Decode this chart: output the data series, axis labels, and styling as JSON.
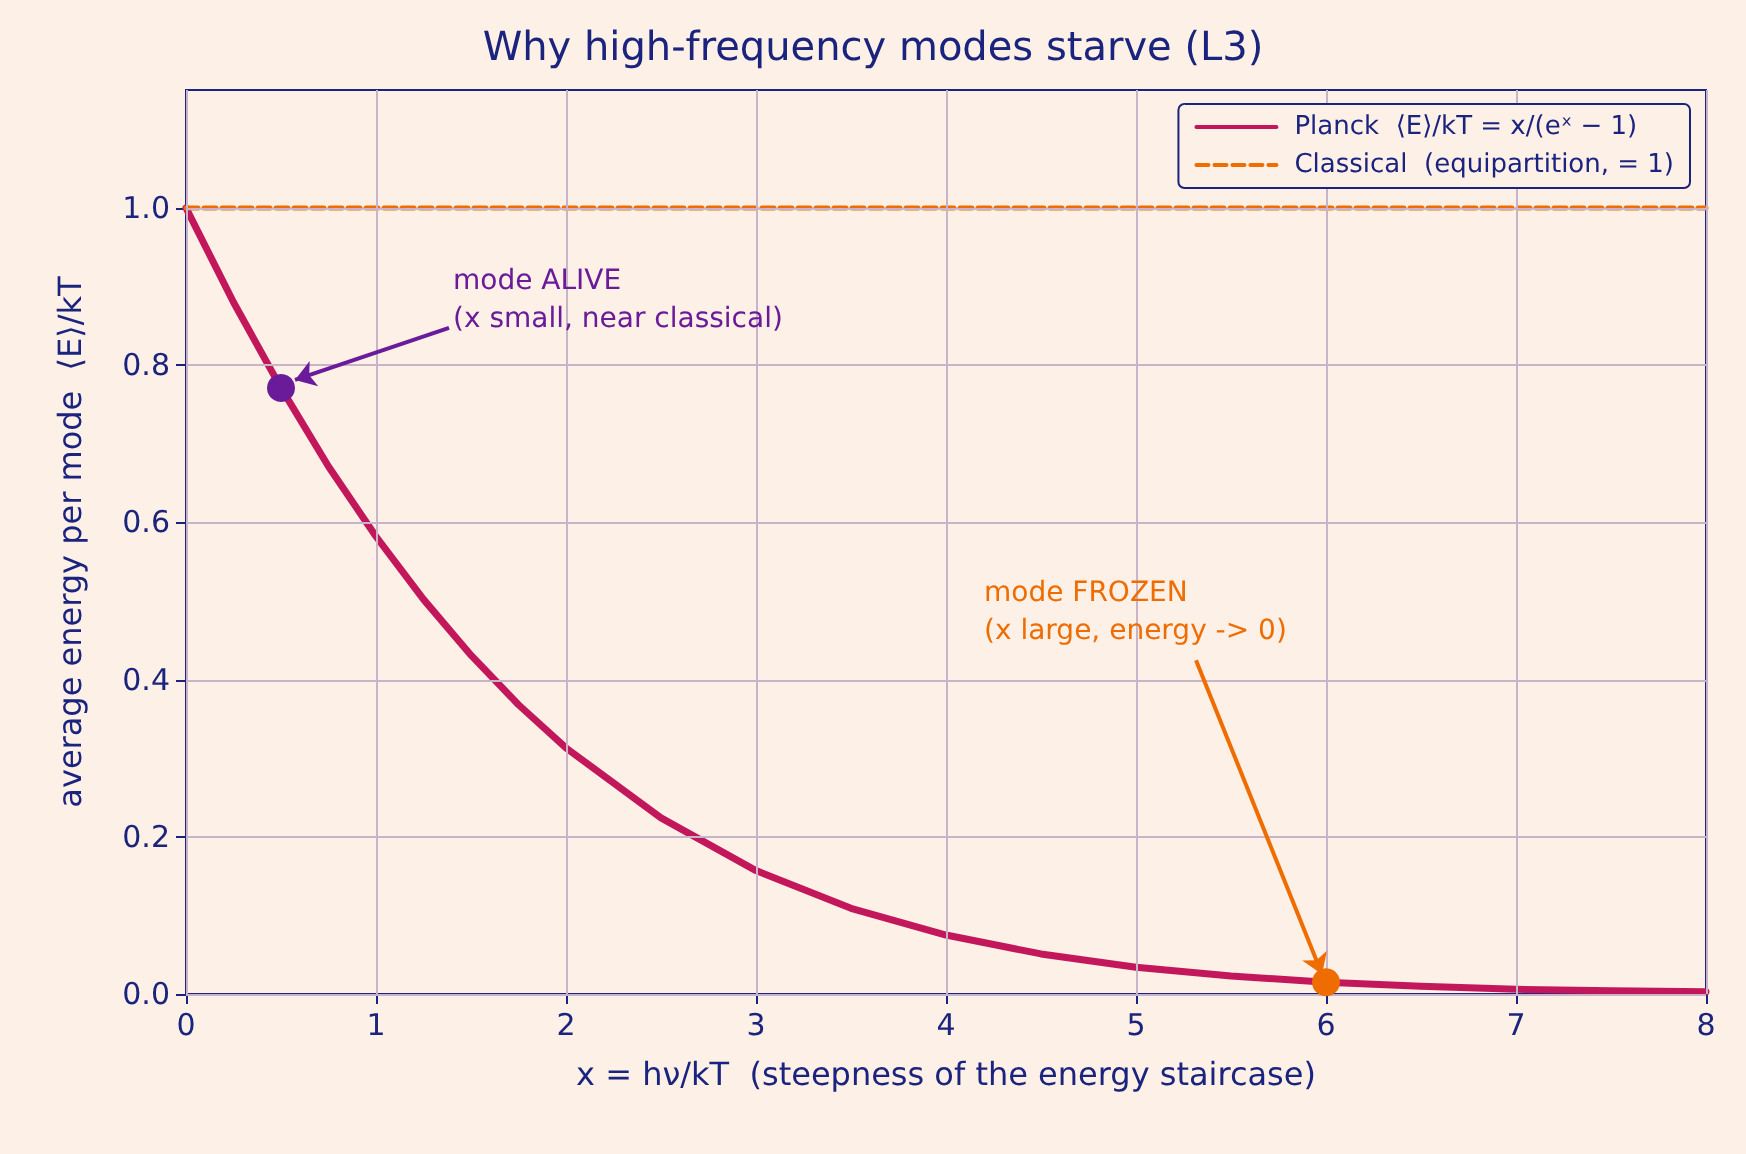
{
  "chart_data": {
    "type": "line",
    "title": "Why high-frequency modes starve (L3)",
    "xlabel": "x = hν/kT  (steepness of the energy staircase)",
    "ylabel": "average energy per mode  ⟨E⟩/kT",
    "xlim": [
      0,
      8
    ],
    "ylim": [
      0,
      1.15
    ],
    "xticks": [
      0,
      1,
      2,
      3,
      4,
      5,
      6,
      7,
      8
    ],
    "yticks": [
      {
        "value": 0,
        "label": "0.0"
      },
      {
        "value": 0.2,
        "label": "0.2"
      },
      {
        "value": 0.4,
        "label": "0.4"
      },
      {
        "value": 0.6,
        "label": "0.6"
      },
      {
        "value": 0.8,
        "label": "0.8"
      },
      {
        "value": 1,
        "label": "1.0"
      }
    ],
    "grid": true,
    "legend": "top right",
    "series": [
      {
        "name": "Planck  ⟨E⟩/kT = x/(eˣ − 1)",
        "color": "#c2185b",
        "x": [
          0,
          0.25,
          0.5,
          0.75,
          1,
          1.25,
          1.5,
          1.75,
          2,
          2.5,
          3,
          3.5,
          4,
          4.5,
          5,
          5.5,
          6,
          6.5,
          7,
          7.5,
          8
        ],
        "values": [
          1,
          0.88,
          0.771,
          0.671,
          0.582,
          0.502,
          0.431,
          0.368,
          0.313,
          0.224,
          0.157,
          0.109,
          0.075,
          0.051,
          0.034,
          0.023,
          0.015,
          0.01,
          0.006,
          0.004,
          0.003
        ],
        "line_style": "solid",
        "marker": "none"
      },
      {
        "name": "Classical  (equipartition, = 1)",
        "color": "#ef6c00",
        "x": [
          0,
          8
        ],
        "values": [
          1,
          1
        ],
        "line_style": "dashed",
        "marker": "none"
      },
      {
        "type": "scatter",
        "color": "#6a1b9a",
        "x": [
          0.5
        ],
        "values": [
          0.771
        ],
        "marker": "circle"
      },
      {
        "type": "scatter",
        "color": "#ef6c00",
        "x": [
          6
        ],
        "values": [
          0.015
        ],
        "marker": "circle"
      }
    ],
    "annotations": [
      {
        "text": "mode ALIVE\n(x small, near classical)",
        "x": 0.5,
        "y": 0.771
      },
      {
        "text": "mode FROZEN\n(x large, energy -> 0)",
        "x": 6,
        "y": 0.015
      }
    ]
  }
}
